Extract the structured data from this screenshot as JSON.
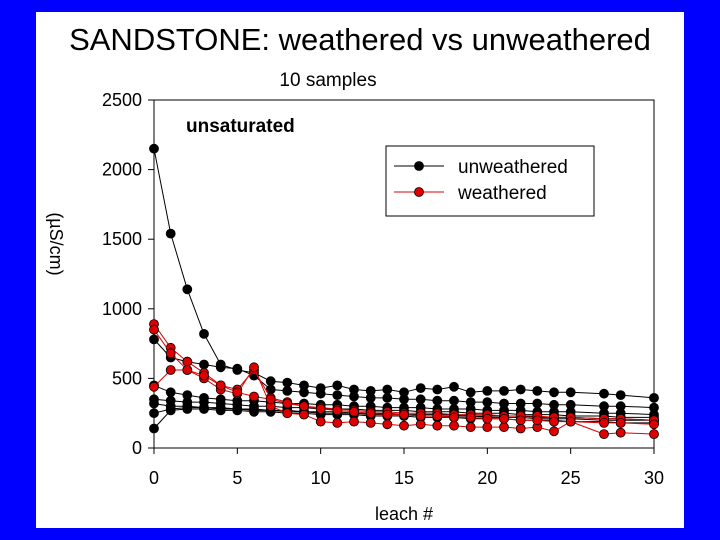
{
  "slide": {
    "title": "SANDSTONE: weathered vs unweathered",
    "background": "#0000ff"
  },
  "chart_data": {
    "type": "line",
    "title": "SANDSTONE: weathered vs unweathered",
    "subtitle": "10 samples",
    "annotation": "unsaturated",
    "xlabel": "leach #",
    "ylabel": "(µS/cm)",
    "xlim": [
      0,
      30
    ],
    "ylim": [
      0,
      2500
    ],
    "xticks": [
      0,
      5,
      10,
      15,
      20,
      25,
      30
    ],
    "yticks": [
      0,
      500,
      1000,
      1500,
      2000,
      2500
    ],
    "grid": false,
    "legend_position": "top-right",
    "legend": [
      {
        "name": "unweathered",
        "color": "#000000",
        "marker": "#000000"
      },
      {
        "name": "weathered",
        "color": "#dd0000",
        "marker": "#dd0000"
      }
    ],
    "x": [
      0,
      1,
      2,
      3,
      4,
      5,
      6,
      7,
      8,
      9,
      10,
      11,
      12,
      13,
      14,
      15,
      16,
      17,
      18,
      19,
      20,
      21,
      22,
      23,
      24,
      25,
      27,
      28,
      30
    ],
    "series": [
      {
        "name": "unweathered",
        "group": "unweathered",
        "values": [
          2150,
          1540,
          1140,
          820,
          600,
          560,
          540,
          480,
          470,
          450,
          430,
          450,
          420,
          410,
          420,
          400,
          430,
          420,
          440,
          400,
          410,
          410,
          420,
          410,
          400,
          400,
          390,
          380,
          360
        ]
      },
      {
        "name": "unweathered",
        "group": "unweathered",
        "values": [
          780,
          650,
          620,
          600,
          580,
          570,
          520,
          420,
          410,
          400,
          390,
          380,
          370,
          360,
          360,
          350,
          350,
          340,
          340,
          330,
          330,
          320,
          320,
          320,
          310,
          310,
          300,
          300,
          290
        ]
      },
      {
        "name": "unweathered",
        "group": "unweathered",
        "values": [
          450,
          400,
          380,
          360,
          350,
          340,
          340,
          330,
          320,
          320,
          310,
          310,
          300,
          300,
          290,
          290,
          290,
          280,
          280,
          280,
          270,
          270,
          270,
          260,
          260,
          260,
          250,
          250,
          240
        ]
      },
      {
        "name": "unweathered",
        "group": "unweathered",
        "values": [
          350,
          340,
          330,
          330,
          320,
          310,
          300,
          300,
          290,
          290,
          280,
          280,
          280,
          270,
          270,
          270,
          260,
          260,
          260,
          250,
          250,
          250,
          240,
          240,
          240,
          230,
          230,
          220,
          220
        ]
      },
      {
        "name": "unweathered",
        "group": "unweathered",
        "values": [
          320,
          300,
          300,
          290,
          290,
          280,
          280,
          270,
          270,
          260,
          260,
          260,
          250,
          250,
          250,
          240,
          240,
          240,
          240,
          230,
          230,
          230,
          230,
          220,
          220,
          220,
          210,
          210,
          200
        ]
      },
      {
        "name": "unweathered",
        "group": "unweathered",
        "values": [
          250,
          280,
          290,
          290,
          280,
          280,
          270,
          270,
          260,
          260,
          250,
          250,
          250,
          240,
          240,
          240,
          230,
          230,
          230,
          230,
          220,
          220,
          220,
          210,
          210,
          210,
          200,
          200,
          200
        ]
      },
      {
        "name": "unweathered",
        "group": "unweathered",
        "values": [
          140,
          270,
          280,
          280,
          270,
          270,
          260,
          260,
          250,
          250,
          240,
          240,
          240,
          230,
          230,
          230,
          220,
          220,
          220,
          210,
          210,
          210,
          200,
          200,
          200,
          190,
          190,
          180,
          180
        ]
      },
      {
        "name": "weathered",
        "group": "weathered",
        "values": [
          890,
          720,
          620,
          540,
          450,
          420,
          560,
          360,
          330,
          300,
          290,
          280,
          270,
          260,
          260,
          250,
          250,
          250,
          240,
          240,
          240,
          230,
          230,
          230,
          220,
          220,
          210,
          210,
          200
        ]
      },
      {
        "name": "weathered",
        "group": "weathered",
        "values": [
          850,
          680,
          560,
          500,
          420,
          390,
          580,
          300,
          250,
          240,
          190,
          180,
          190,
          180,
          170,
          160,
          170,
          160,
          160,
          150,
          150,
          150,
          140,
          150,
          120,
          190,
          100,
          110,
          100
        ]
      },
      {
        "name": "weathered",
        "group": "weathered",
        "values": [
          440,
          560,
          560,
          520,
          450,
          400,
          370,
          350,
          320,
          300,
          280,
          270,
          260,
          250,
          240,
          240,
          230,
          230,
          220,
          220,
          210,
          210,
          200,
          200,
          190,
          190,
          180,
          180,
          170
        ]
      }
    ]
  }
}
